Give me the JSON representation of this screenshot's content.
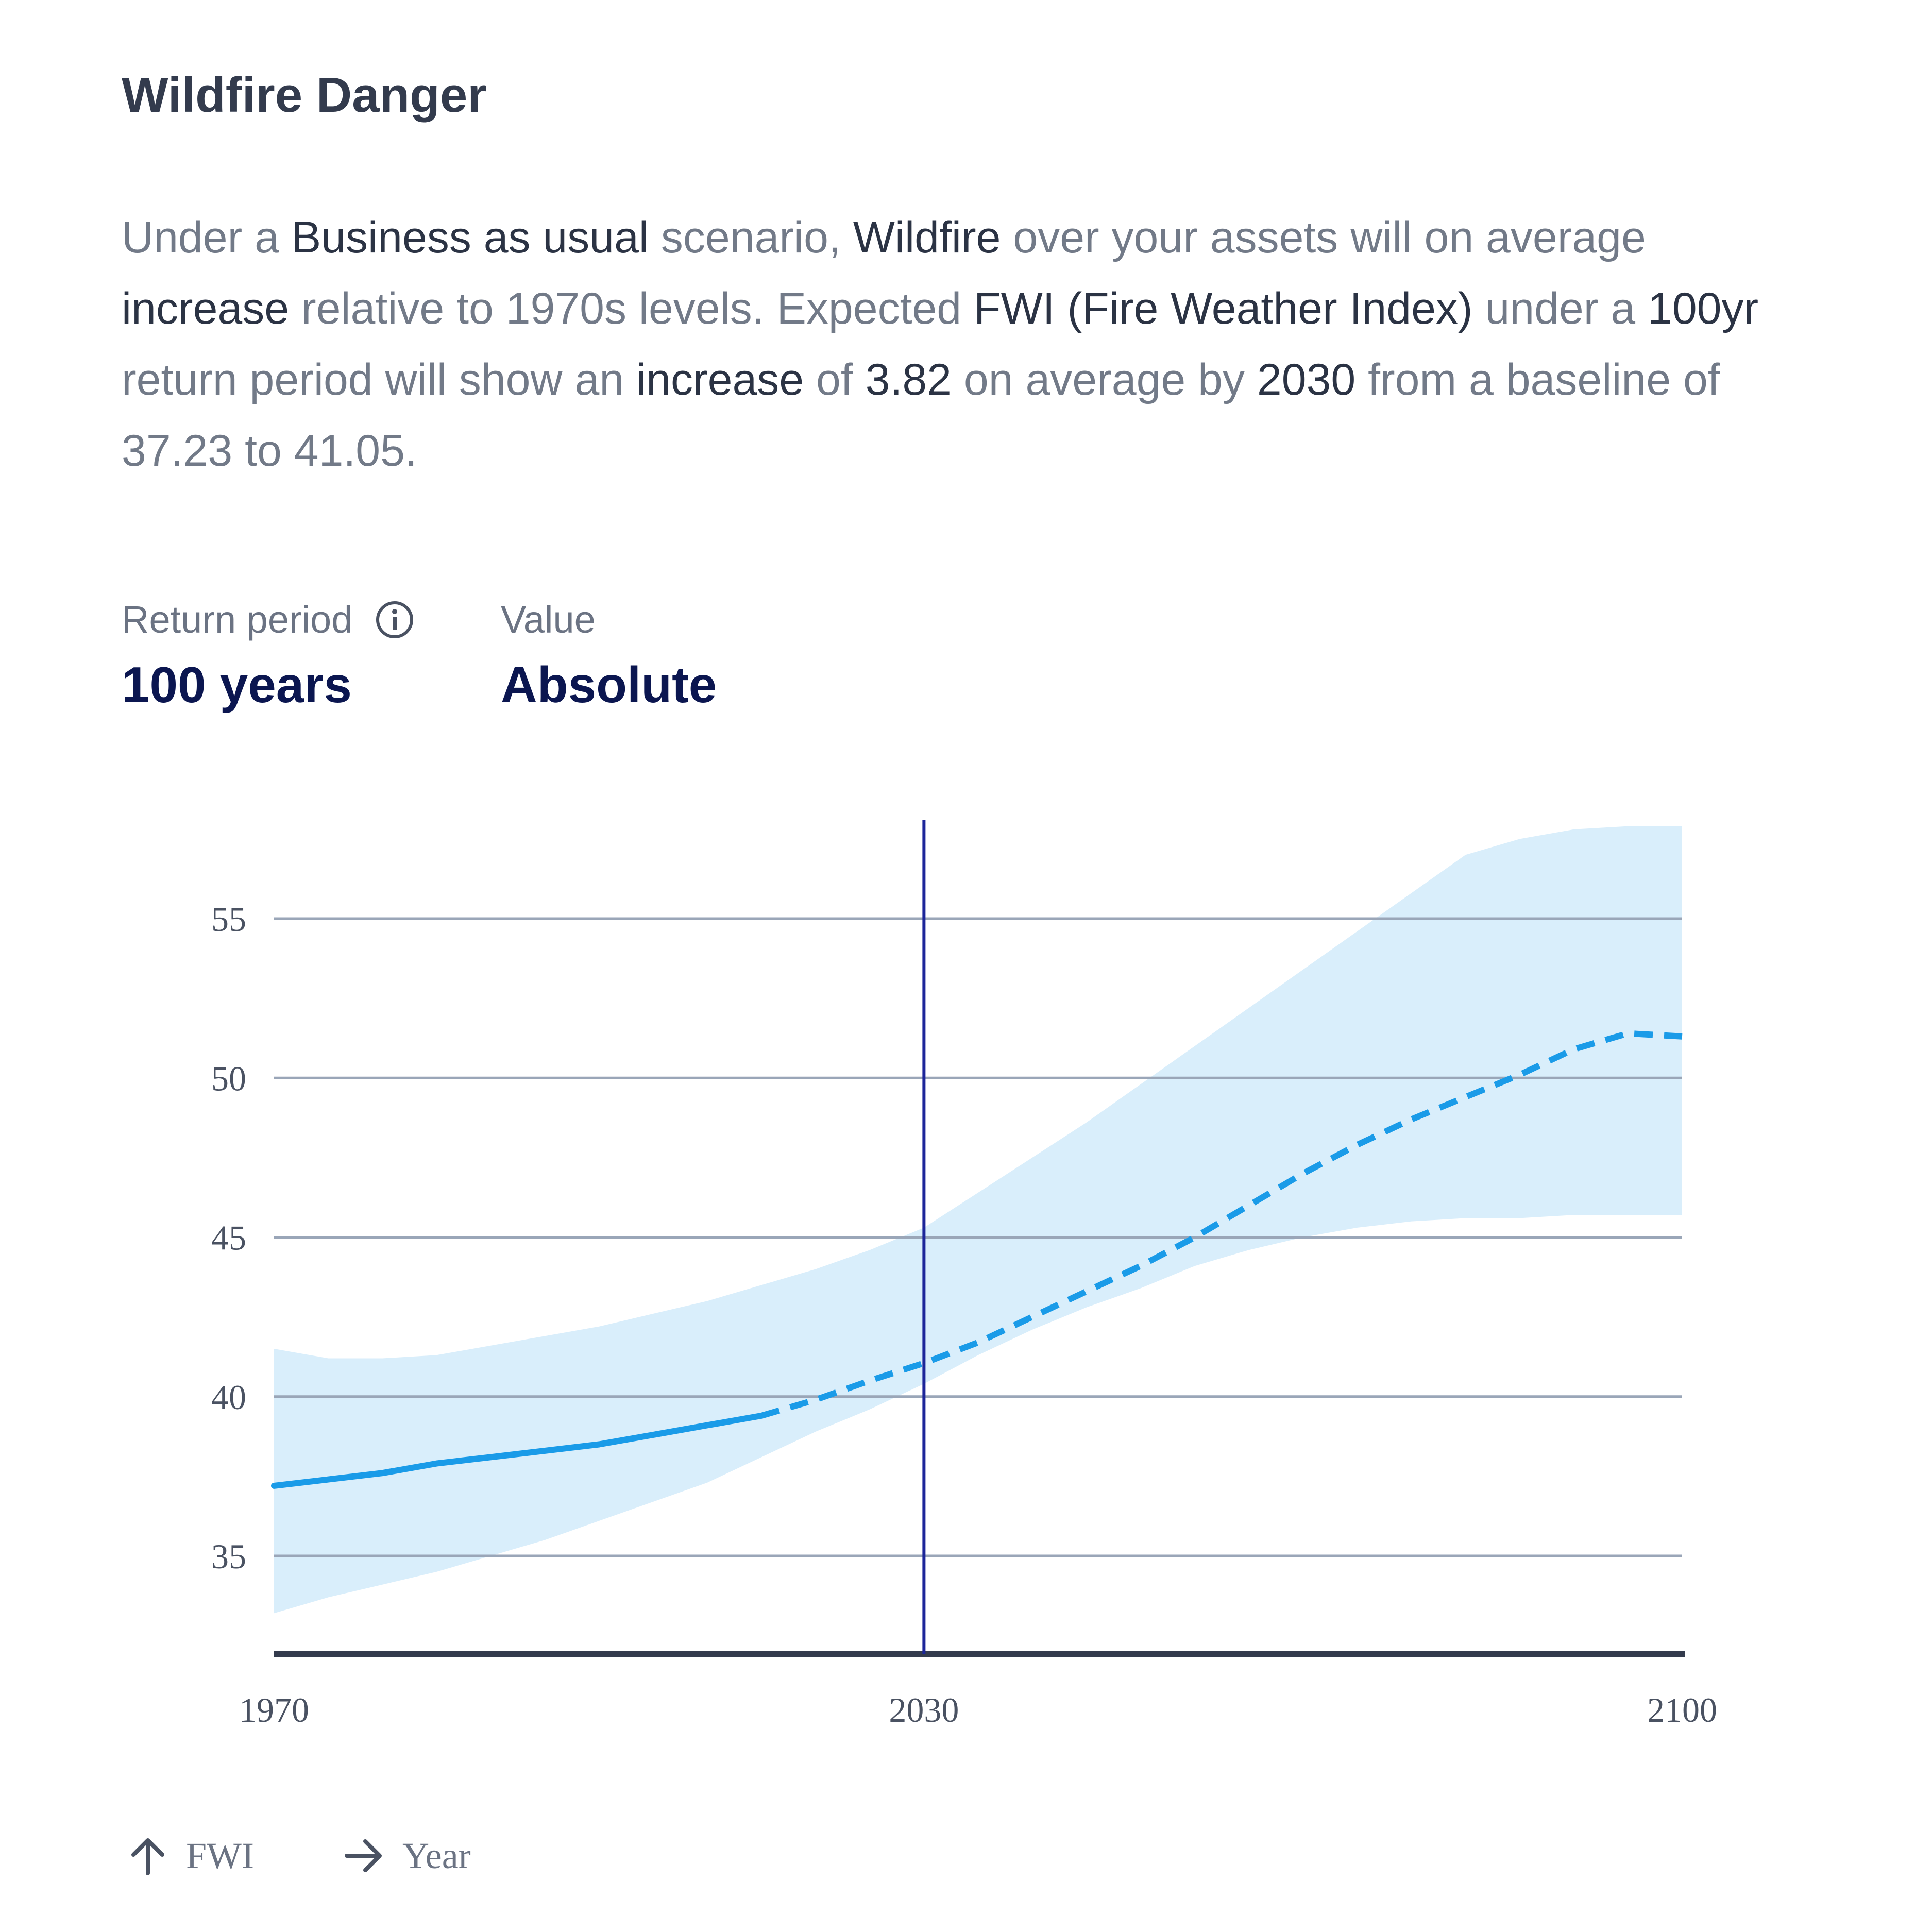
{
  "header": {
    "title": "Wildfire Danger"
  },
  "description": {
    "p1": "Under a ",
    "scenario": "Business as usual",
    "p2": " scenario, ",
    "hazard": "Wildfire",
    "p3": " over your assets will on average ",
    "direction": "increase",
    "p4": " relative to 1970s levels. Expected ",
    "metric": "FWI (Fire Weather Index)",
    "p5": " under a ",
    "period": "100yr",
    "p6": " return period will show an ",
    "direction2": "increase",
    "p7": " of ",
    "change": "3.82",
    "p8": " on average by ",
    "year": "2030",
    "p9": " from a baseline of ",
    "baseline": "37.23",
    "p10": " to ",
    "projected": "41.05",
    "p11": "."
  },
  "controls": {
    "return_period": {
      "label": "Return period",
      "value": "100 years",
      "icon": "info-icon"
    },
    "value_mode": {
      "label": "Value",
      "value": "Absolute"
    }
  },
  "legend": {
    "y": {
      "icon": "arrow-up-icon",
      "label": "FWI"
    },
    "x": {
      "icon": "arrow-right-icon",
      "label": "Year"
    }
  },
  "colors": {
    "line": "#1a9be8",
    "band": "#d9eefb",
    "grid": "#9aa6b8",
    "axis": "#333b4d",
    "marker": "#1c2599"
  },
  "chart_data": {
    "type": "line",
    "x_ticks": [
      1970,
      2030,
      2100
    ],
    "y_ticks": [
      35,
      40,
      45,
      50,
      55
    ],
    "xlim": [
      1970,
      2100
    ],
    "ylim": [
      32,
      58
    ],
    "grid": true,
    "marker_year": 2030,
    "series": [
      {
        "style": "solid",
        "x": [
          1970,
          1975,
          1980,
          1985,
          1990,
          1995,
          2000,
          2005,
          2010,
          2015
        ],
        "y": [
          37.2,
          37.4,
          37.6,
          37.9,
          38.1,
          38.3,
          38.5,
          38.8,
          39.1,
          39.4
        ]
      },
      {
        "style": "dashed",
        "x": [
          2015,
          2020,
          2025,
          2030,
          2035,
          2040,
          2045,
          2050,
          2055,
          2060,
          2065,
          2070,
          2075,
          2080,
          2085,
          2090,
          2095,
          2100
        ],
        "y": [
          39.4,
          39.9,
          40.5,
          41.05,
          41.7,
          42.5,
          43.3,
          44.1,
          45.0,
          46.0,
          47.0,
          47.9,
          48.7,
          49.4,
          50.1,
          50.9,
          51.4,
          51.3
        ]
      }
    ],
    "band": {
      "x": [
        1970,
        1975,
        1980,
        1985,
        1990,
        1995,
        2000,
        2005,
        2010,
        2015,
        2020,
        2025,
        2030,
        2035,
        2040,
        2045,
        2050,
        2055,
        2060,
        2065,
        2070,
        2075,
        2080,
        2085,
        2090,
        2095,
        2100
      ],
      "upper": [
        41.5,
        41.2,
        41.2,
        41.3,
        41.6,
        41.9,
        42.2,
        42.6,
        43.0,
        43.5,
        44.0,
        44.6,
        45.3,
        46.4,
        47.5,
        48.6,
        49.8,
        51.0,
        52.2,
        53.4,
        54.6,
        55.8,
        57.0,
        57.5,
        57.8,
        57.9,
        57.9
      ],
      "lower": [
        33.2,
        33.7,
        34.1,
        34.5,
        35.0,
        35.5,
        36.1,
        36.7,
        37.3,
        38.1,
        38.9,
        39.6,
        40.4,
        41.3,
        42.1,
        42.8,
        43.4,
        44.1,
        44.6,
        45.0,
        45.3,
        45.5,
        45.6,
        45.6,
        45.7,
        45.7,
        45.7
      ]
    }
  }
}
